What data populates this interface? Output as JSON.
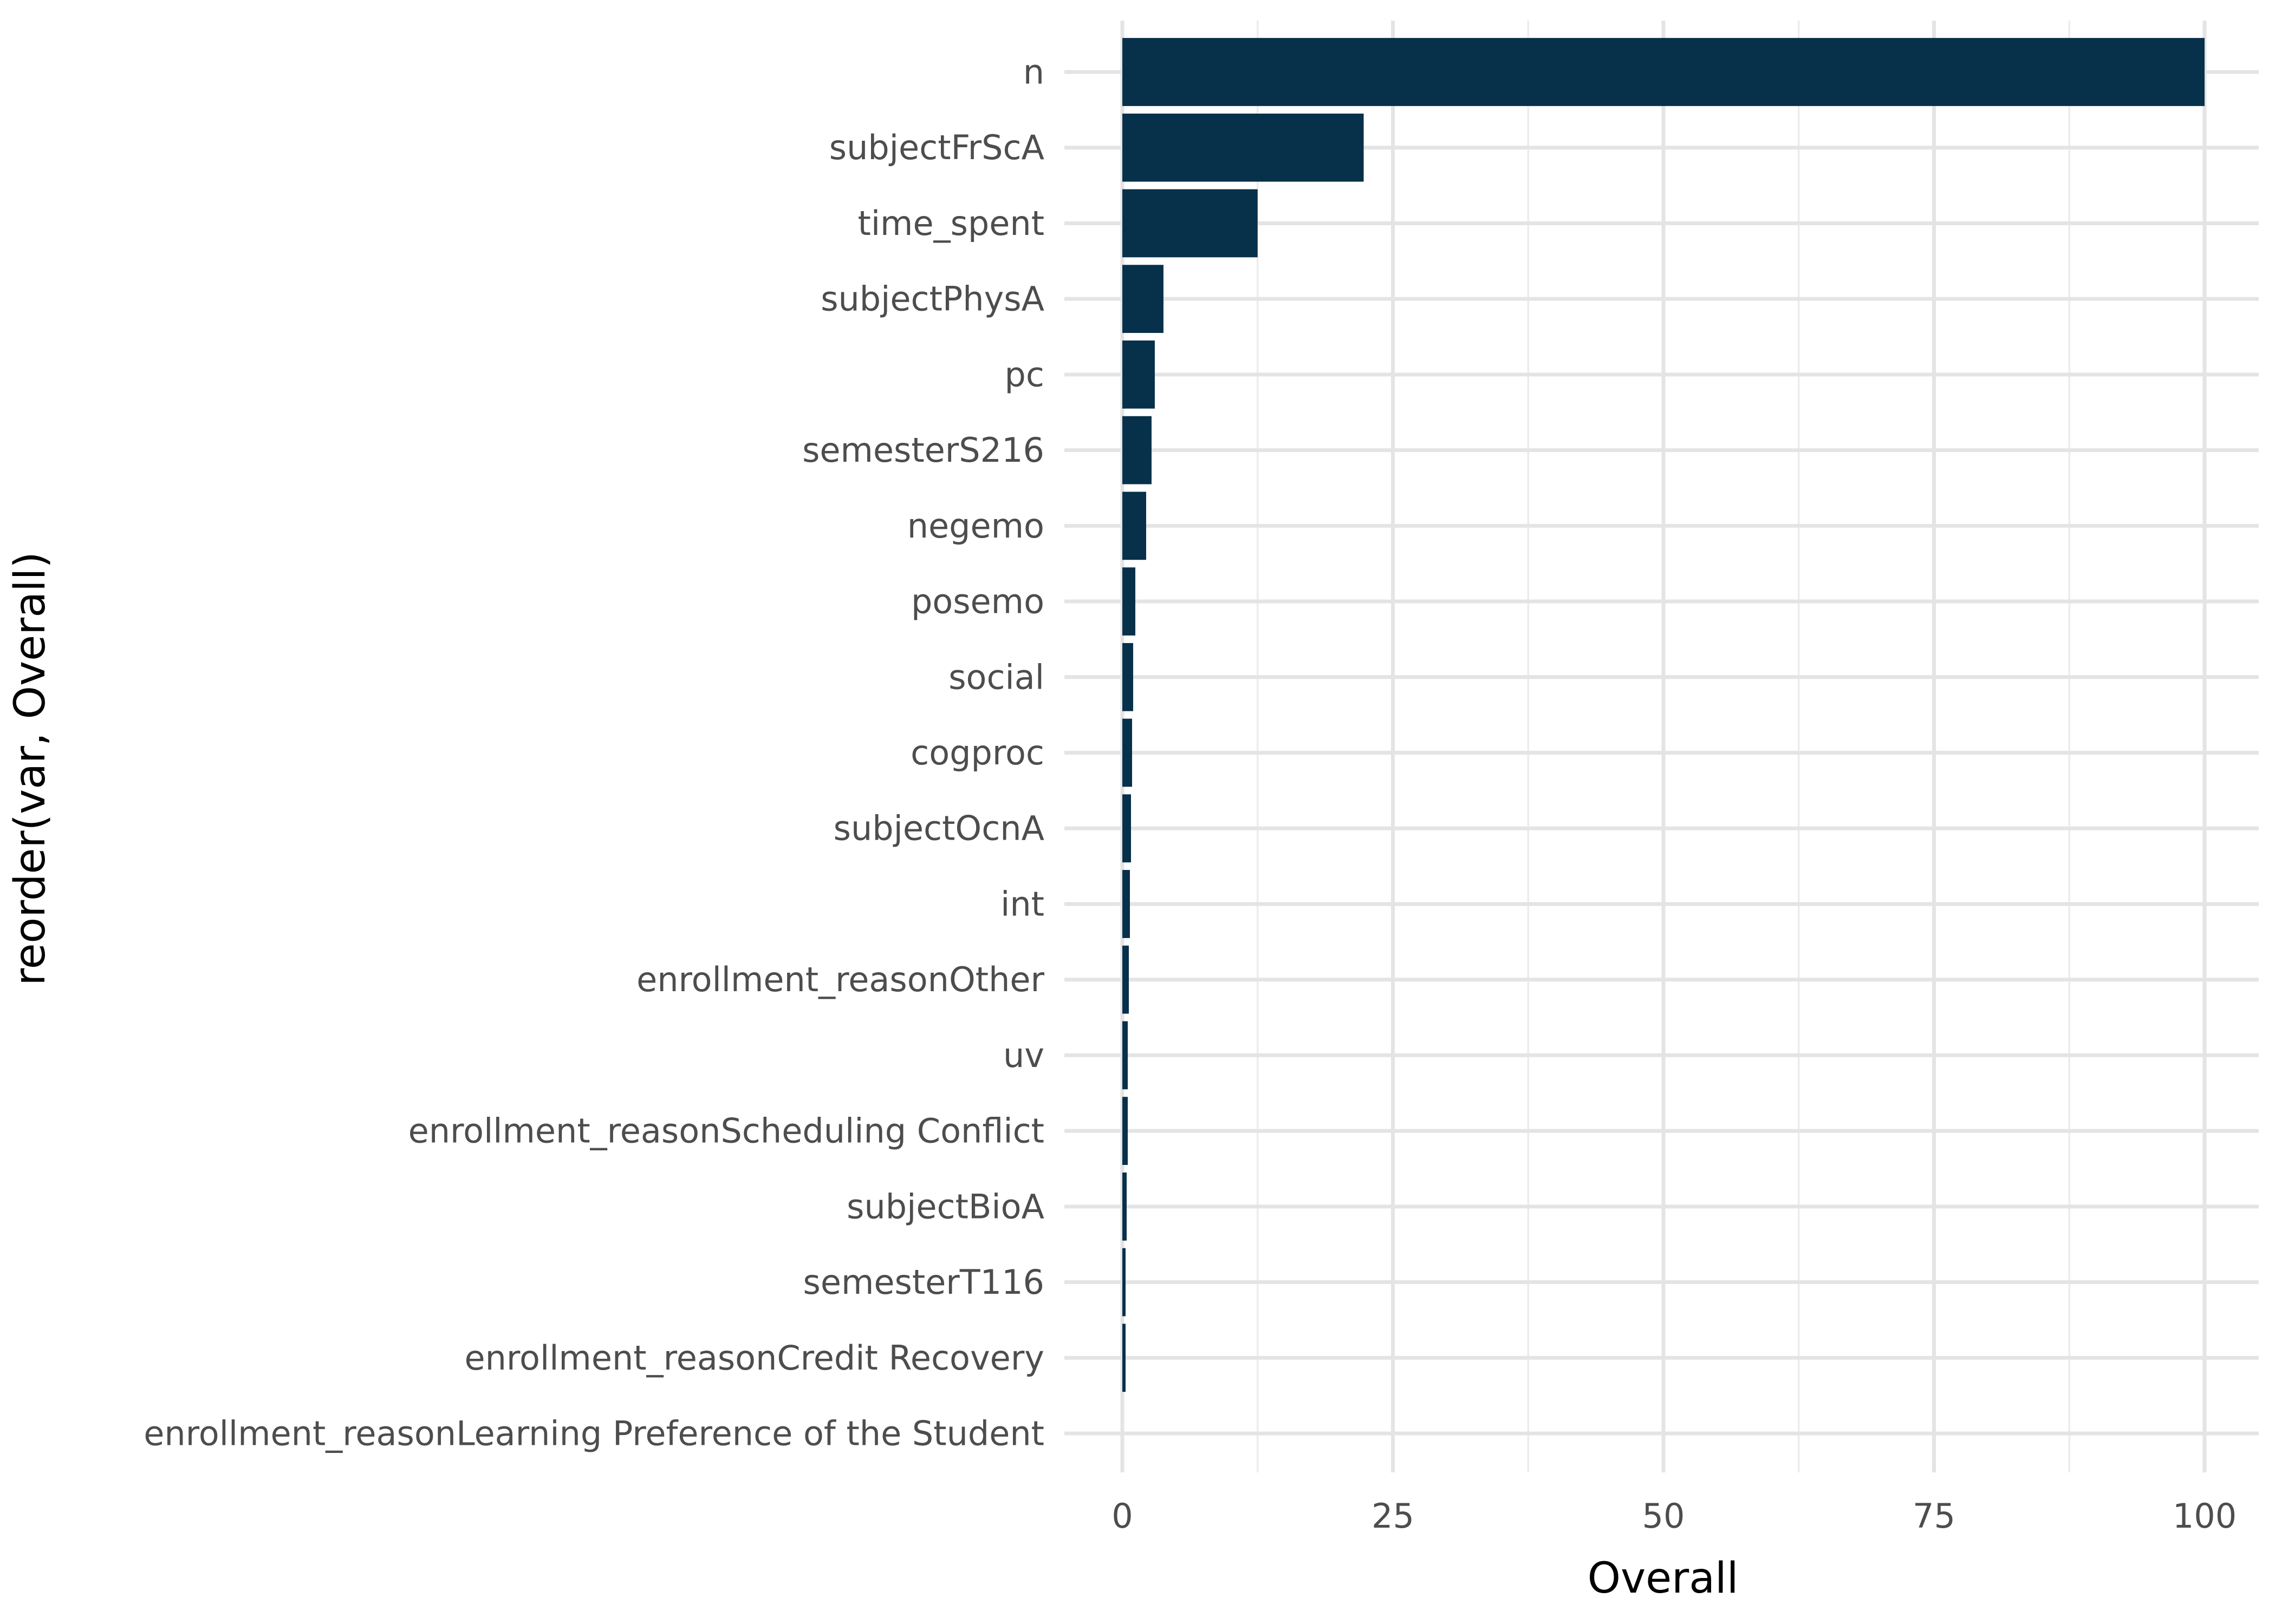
{
  "chart_data": {
    "type": "bar",
    "orientation": "horizontal",
    "xlabel": "Overall",
    "ylabel": "reorder(var, Overall)",
    "xlim": [
      0,
      100
    ],
    "xticks": [
      0,
      25,
      50,
      75,
      100
    ],
    "grid": true,
    "bar_color": "#07304a",
    "categories": [
      "n",
      "subjectFrScA",
      "time_spent",
      "subjectPhysA",
      "pc",
      "semesterS216",
      "negemo",
      "posemo",
      "social",
      "cogproc",
      "subjectOcnA",
      "int",
      "enrollment_reasonOther",
      "uv",
      "enrollment_reasonScheduling Conflict",
      "subjectBioA",
      "semesterT116",
      "enrollment_reasonCredit Recovery",
      "enrollment_reasonLearning Preference of the Student"
    ],
    "values": [
      100,
      22.3,
      12.5,
      3.8,
      3.0,
      2.7,
      2.2,
      1.2,
      1.0,
      0.9,
      0.8,
      0.7,
      0.6,
      0.5,
      0.5,
      0.4,
      0.3,
      0.3,
      0
    ]
  }
}
